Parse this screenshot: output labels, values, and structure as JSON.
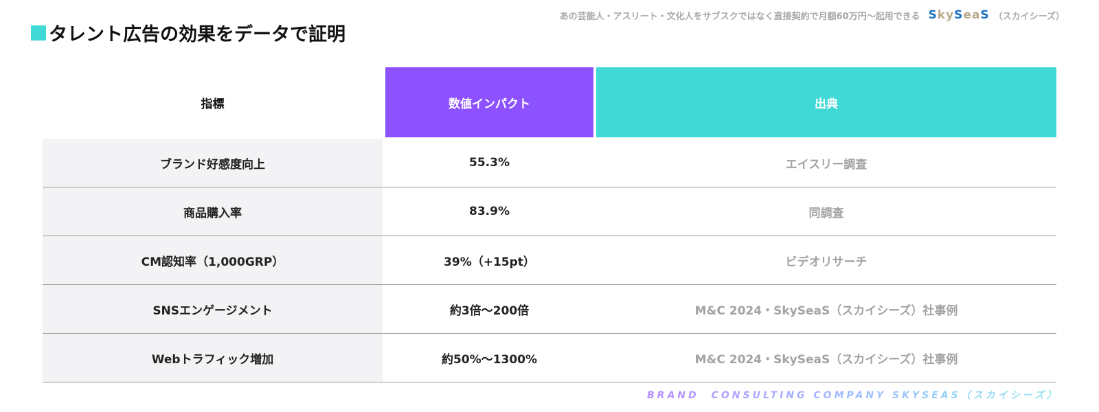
{
  "title": "タレント広告の効果をデータで証明",
  "tagline": {
    "text": "あの芸能人・アスリート・文化人をサブスクではなく直接契約で月額60万円〜起用できる",
    "logo": "SkySeaS",
    "suffix": "（スカイシーズ）"
  },
  "table": {
    "headers": [
      "指標",
      "数値インパクト",
      "出典"
    ],
    "rows": [
      [
        "ブランド好感度向上",
        "55.3%",
        "エイスリー調査"
      ],
      [
        "商品購入率",
        "83.9%",
        "同調査"
      ],
      [
        "CM認知率（1,000GRP）",
        "39%（+15pt）",
        "ビデオリサーチ"
      ],
      [
        "SNSエンゲージメント",
        "約3倍〜200倍",
        "M&C 2024・SkySeaS（スカイシーズ）社事例"
      ],
      [
        "Webトラフィック増加",
        "約50%〜1300%",
        "M&C 2024・SkySeaS（スカイシーズ）社事例"
      ]
    ]
  },
  "footer": "BRAND　CONSULTING COMPANY SKYSEAS（スカイシーズ）",
  "colors": {
    "accent": "#40d9d6",
    "purple": "#8c52ff",
    "logo_blue": "#1a73c6"
  }
}
